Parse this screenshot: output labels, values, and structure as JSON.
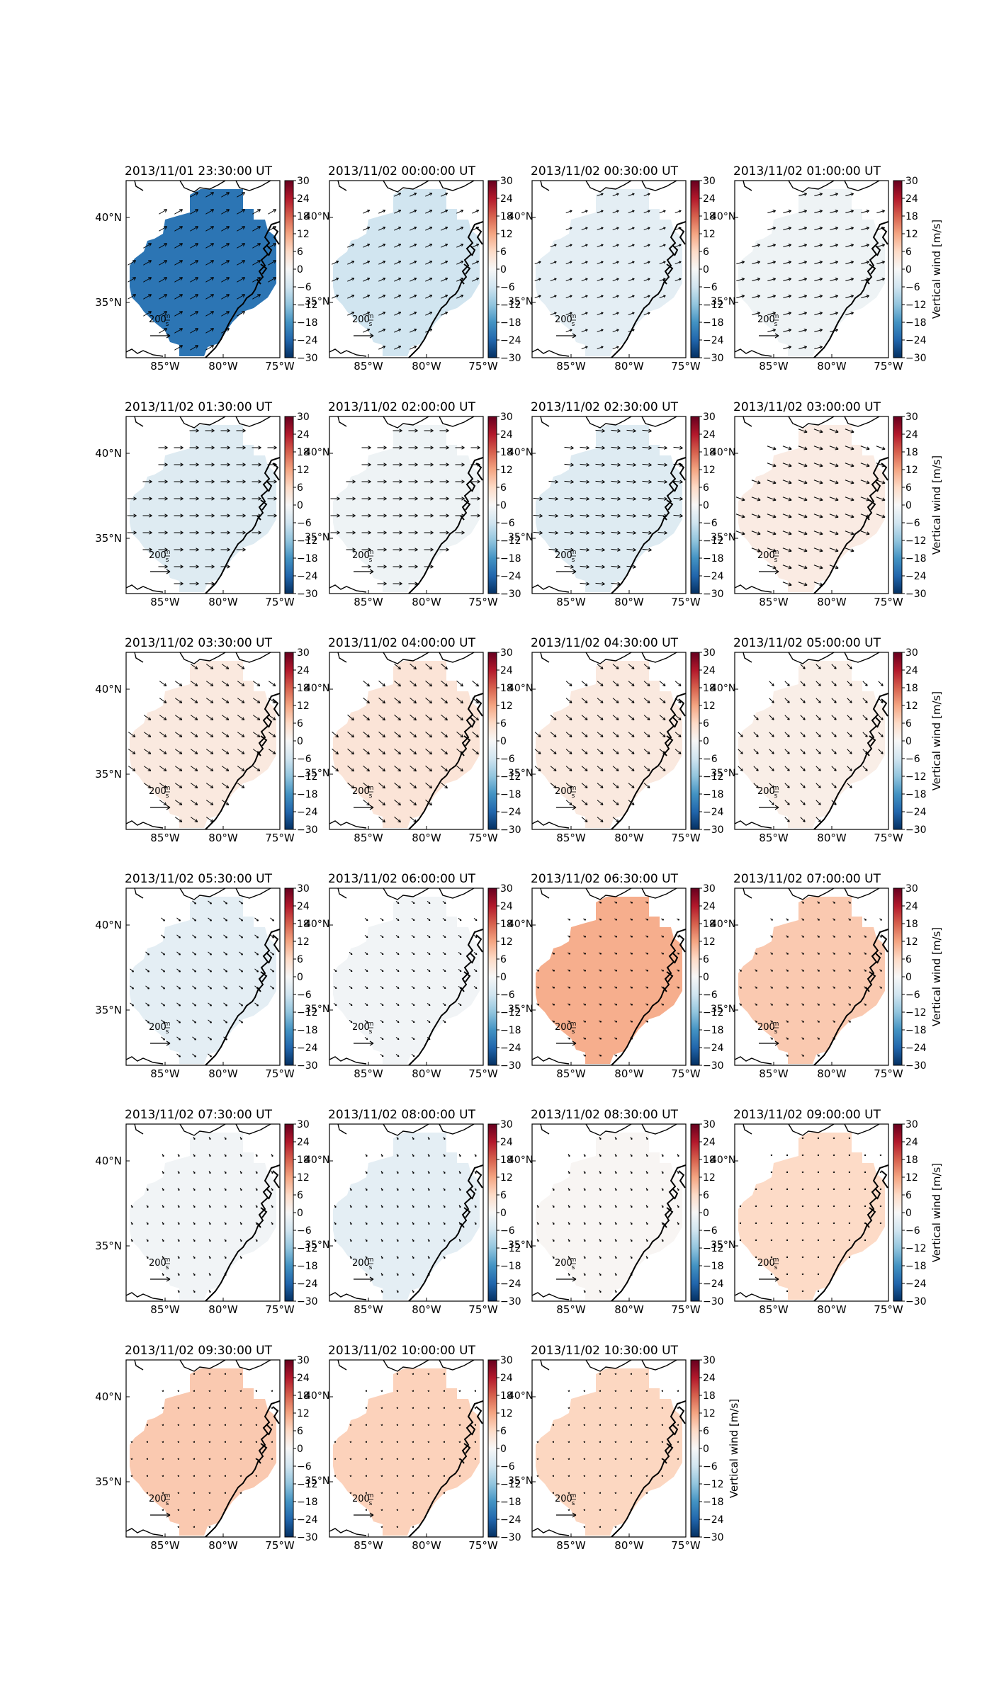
{
  "figure": {
    "colorbar_label": "Vertical wind [m/s]",
    "colorbar_ticks": [
      30,
      24,
      18,
      12,
      6,
      0,
      -6,
      -12,
      -18,
      -24,
      -30
    ],
    "colorbar_range": [
      -30,
      30
    ],
    "colormap": "RdBu_r",
    "colormap_stops": [
      "#053061",
      "#2166ac",
      "#4393c3",
      "#92c5de",
      "#d1e5f0",
      "#f7f7f7",
      "#fddbc7",
      "#f4a582",
      "#d6604d",
      "#b2182b",
      "#67001f"
    ],
    "lon_ticks": [
      "85°W",
      "80°W",
      "75°W"
    ],
    "lat_ticks": [
      "40°N",
      "35°N"
    ],
    "reference_vector_label": "200",
    "reference_vector_unit_num": "m",
    "reference_vector_unit_den": "s",
    "stray_lat_tick": "35°N",
    "stray_lat_tick_top": "40°N",
    "layout": "6 rows x 4 columns, 23 panels"
  },
  "chart_data": {
    "type": "heatmap",
    "description_of_encoding": "each panel is a map of vertical wind; value = uniform fill level of the domain in m/s",
    "panels": [
      {
        "title": "2013/11/01 23:30:00 UT",
        "value": -22,
        "wind_dir_deg": 30,
        "arrow_scale": 1.0
      },
      {
        "title": "2013/11/02 00:00:00 UT",
        "value": -6,
        "wind_dir_deg": 25,
        "arrow_scale": 0.8
      },
      {
        "title": "2013/11/02 00:30:00 UT",
        "value": -3,
        "wind_dir_deg": 20,
        "arrow_scale": 0.7
      },
      {
        "title": "2013/11/02 01:00:00 UT",
        "value": -1.5,
        "wind_dir_deg": 15,
        "arrow_scale": 0.9
      },
      {
        "title": "2013/11/02 01:30:00 UT",
        "value": -4,
        "wind_dir_deg": 0,
        "arrow_scale": 1.0
      },
      {
        "title": "2013/11/02 02:00:00 UT",
        "value": -1.5,
        "wind_dir_deg": 0,
        "arrow_scale": 1.0
      },
      {
        "title": "2013/11/02 02:30:00 UT",
        "value": -4,
        "wind_dir_deg": -5,
        "arrow_scale": 1.0
      },
      {
        "title": "2013/11/02 03:00:00 UT",
        "value": 2.5,
        "wind_dir_deg": -20,
        "arrow_scale": 1.0
      },
      {
        "title": "2013/11/02 03:30:00 UT",
        "value": 3,
        "wind_dir_deg": -35,
        "arrow_scale": 0.9
      },
      {
        "title": "2013/11/02 04:00:00 UT",
        "value": 4,
        "wind_dir_deg": -40,
        "arrow_scale": 0.9
      },
      {
        "title": "2013/11/02 04:30:00 UT",
        "value": 3,
        "wind_dir_deg": -40,
        "arrow_scale": 0.8
      },
      {
        "title": "2013/11/02 05:00:00 UT",
        "value": 2,
        "wind_dir_deg": -45,
        "arrow_scale": 0.7
      },
      {
        "title": "2013/11/02 05:30:00 UT",
        "value": -3,
        "wind_dir_deg": -40,
        "arrow_scale": 0.5
      },
      {
        "title": "2013/11/02 06:00:00 UT",
        "value": -1,
        "wind_dir_deg": -40,
        "arrow_scale": 0.4
      },
      {
        "title": "2013/11/02 06:30:00 UT",
        "value": 11,
        "wind_dir_deg": -30,
        "arrow_scale": 0.3
      },
      {
        "title": "2013/11/02 07:00:00 UT",
        "value": 8,
        "wind_dir_deg": -40,
        "arrow_scale": 0.3
      },
      {
        "title": "2013/11/02 07:30:00 UT",
        "value": -1,
        "wind_dir_deg": -60,
        "arrow_scale": 0.3
      },
      {
        "title": "2013/11/02 08:00:00 UT",
        "value": -3,
        "wind_dir_deg": -60,
        "arrow_scale": 0.3
      },
      {
        "title": "2013/11/02 08:30:00 UT",
        "value": 0.5,
        "wind_dir_deg": -60,
        "arrow_scale": 0.3
      },
      {
        "title": "2013/11/02 09:00:00 UT",
        "value": 6,
        "wind_dir_deg": -70,
        "arrow_scale": 0.15
      },
      {
        "title": "2013/11/02 09:30:00 UT",
        "value": 8,
        "wind_dir_deg": -70,
        "arrow_scale": 0.12
      },
      {
        "title": "2013/11/02 10:00:00 UT",
        "value": 7,
        "wind_dir_deg": -70,
        "arrow_scale": 0.12
      },
      {
        "title": "2013/11/02 10:30:00 UT",
        "value": 6.5,
        "wind_dir_deg": -70,
        "arrow_scale": 0.12
      }
    ]
  }
}
